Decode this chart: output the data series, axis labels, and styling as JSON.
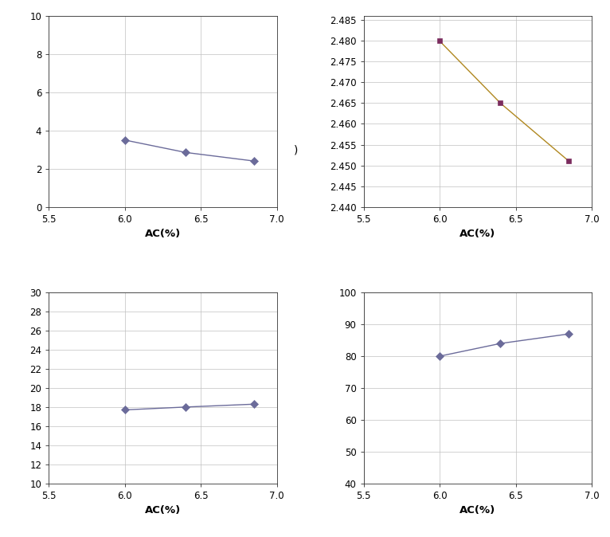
{
  "x_values": [
    6.0,
    6.4,
    6.85
  ],
  "xlim": [
    5.5,
    7.0
  ],
  "xticks": [
    5.5,
    6.0,
    6.5,
    7.0
  ],
  "xlabel": "AC(%)",
  "plot1": {
    "y": [
      3.5,
      2.85,
      2.4
    ],
    "ylim": [
      0,
      10
    ],
    "yticks": [
      0,
      2,
      4,
      6,
      8,
      10
    ],
    "color": "#6b6b9a",
    "marker": "D",
    "markersize": 5,
    "linecolor": "#6b6b9a"
  },
  "plot2": {
    "y": [
      2.48,
      2.465,
      2.451
    ],
    "ylim": [
      2.44,
      2.486
    ],
    "yticks": [
      2.44,
      2.445,
      2.45,
      2.455,
      2.46,
      2.465,
      2.47,
      2.475,
      2.48,
      2.485
    ],
    "color": "#7b2c5e",
    "marker": "s",
    "markersize": 5,
    "linecolor": "#b08820"
  },
  "plot3": {
    "y": [
      17.7,
      18.0,
      18.3
    ],
    "ylim": [
      10,
      30
    ],
    "yticks": [
      10,
      12,
      14,
      16,
      18,
      20,
      22,
      24,
      26,
      28,
      30
    ],
    "color": "#6b6b9a",
    "marker": "D",
    "markersize": 5,
    "linecolor": "#6b6b9a"
  },
  "plot4": {
    "y": [
      80,
      84,
      87
    ],
    "ylim": [
      40,
      100
    ],
    "yticks": [
      40,
      50,
      60,
      70,
      80,
      90,
      100
    ],
    "color": "#6b6b9a",
    "marker": "D",
    "markersize": 5,
    "linecolor": "#6b6b9a"
  },
  "middle_label": ")",
  "grid_color": "#c0c0c0",
  "grid_linewidth": 0.5,
  "bg_color": "#ffffff",
  "tick_fontsize": 8.5,
  "label_fontsize": 9.5
}
